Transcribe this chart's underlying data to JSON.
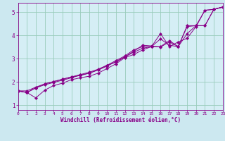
{
  "background_color": "#cce8f0",
  "plot_bg_color": "#d5eef5",
  "grid_color": "#99ccbb",
  "line_color": "#880088",
  "xlim": [
    0,
    23
  ],
  "ylim": [
    0.8,
    5.4
  ],
  "xlabel": "Windchill (Refroidissement éolien,°C)",
  "xticks": [
    0,
    1,
    2,
    3,
    4,
    5,
    6,
    7,
    8,
    9,
    10,
    11,
    12,
    13,
    14,
    15,
    16,
    17,
    18,
    19,
    20,
    21,
    22,
    23
  ],
  "yticks": [
    1,
    2,
    3,
    4,
    5
  ],
  "lines": [
    {
      "x": [
        0,
        1,
        2,
        3,
        4,
        5,
        6,
        7,
        8,
        9,
        10,
        11,
        12,
        13,
        14,
        15,
        16,
        17,
        18,
        19,
        20,
        21,
        22,
        23
      ],
      "y": [
        1.62,
        1.55,
        1.32,
        1.65,
        1.85,
        1.95,
        2.1,
        2.18,
        2.25,
        2.38,
        2.58,
        2.78,
        3.05,
        3.18,
        3.38,
        3.52,
        4.08,
        3.52,
        3.72,
        3.88,
        4.38,
        5.08,
        5.12,
        5.22
      ]
    },
    {
      "x": [
        0,
        1,
        2,
        3,
        4,
        5,
        6,
        7,
        8,
        9,
        10,
        11,
        12,
        13,
        14,
        15,
        16,
        17,
        18,
        19,
        20,
        21,
        22,
        23
      ],
      "y": [
        1.62,
        1.55,
        1.75,
        1.88,
        1.98,
        2.08,
        2.18,
        2.3,
        2.38,
        2.52,
        2.68,
        2.88,
        3.08,
        3.32,
        3.58,
        3.55,
        3.5,
        3.72,
        3.52,
        4.42,
        4.42,
        5.08,
        5.12,
        5.22
      ]
    },
    {
      "x": [
        0,
        1,
        2,
        3,
        4,
        5,
        6,
        7,
        8,
        9,
        10,
        11,
        12,
        13,
        14,
        15,
        16,
        17,
        18,
        19,
        20,
        21,
        22,
        23
      ],
      "y": [
        1.62,
        1.55,
        1.75,
        1.92,
        2.02,
        2.12,
        2.22,
        2.28,
        2.38,
        2.52,
        2.72,
        2.92,
        3.12,
        3.38,
        3.52,
        3.52,
        3.52,
        3.78,
        3.52,
        4.38,
        4.42,
        4.42,
        5.12,
        5.22
      ]
    },
    {
      "x": [
        0,
        1,
        2,
        3,
        4,
        5,
        6,
        7,
        8,
        9,
        10,
        11,
        12,
        13,
        14,
        15,
        16,
        17,
        18,
        19,
        20,
        21,
        22,
        23
      ],
      "y": [
        1.62,
        1.62,
        1.78,
        1.92,
        2.02,
        2.12,
        2.22,
        2.32,
        2.42,
        2.55,
        2.72,
        2.85,
        3.08,
        3.28,
        3.45,
        3.52,
        3.85,
        3.58,
        3.52,
        4.08,
        4.42,
        4.42,
        5.12,
        5.22
      ]
    }
  ]
}
